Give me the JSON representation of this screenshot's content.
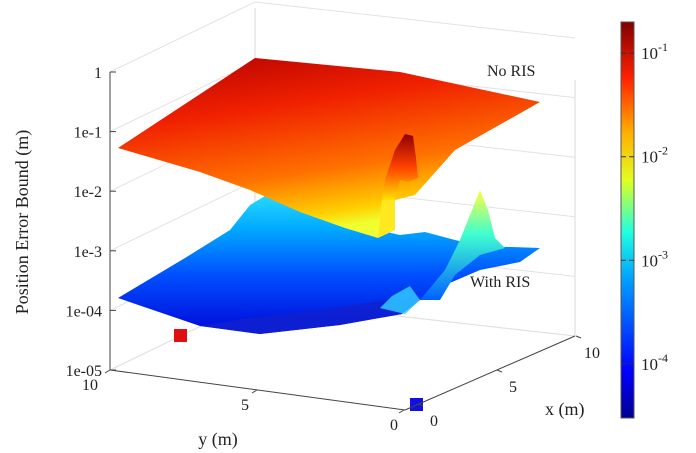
{
  "chart_data": {
    "type": "surface3d",
    "zlabel": "Position Error Bound (m)",
    "xlabel": "x (m)",
    "ylabel": "y (m)",
    "z_scale": "log",
    "zlim": [
      1e-05,
      1
    ],
    "z_ticks": [
      "1e-05",
      "1e-04",
      "1e-3",
      "1e-2",
      "1e-1",
      "1"
    ],
    "x_ticks": [
      "0",
      "5",
      "10"
    ],
    "y_ticks": [
      "10",
      "5",
      "0"
    ],
    "x_range": [
      0,
      10
    ],
    "y_range": [
      0,
      10
    ],
    "colorbar": {
      "scale": "log",
      "range": [
        3e-05,
        0.2
      ],
      "ticks": [
        {
          "base": "10",
          "exp": "-1",
          "value": 0.1
        },
        {
          "base": "10",
          "exp": "-2",
          "value": 0.01
        },
        {
          "base": "10",
          "exp": "-3",
          "value": 0.001
        },
        {
          "base": "10",
          "exp": "-4",
          "value": 0.0001
        }
      ]
    },
    "annotations": [
      "No RIS",
      "With RIS"
    ],
    "markers": [
      {
        "color": "#e01010"
      },
      {
        "color": "#1010e0"
      }
    ],
    "series": [
      {
        "label": "No RIS",
        "z_min": 0.005,
        "z_max": 0.2
      },
      {
        "label": "With RIS",
        "z_min": 3e-05,
        "z_max": 0.01
      }
    ]
  }
}
